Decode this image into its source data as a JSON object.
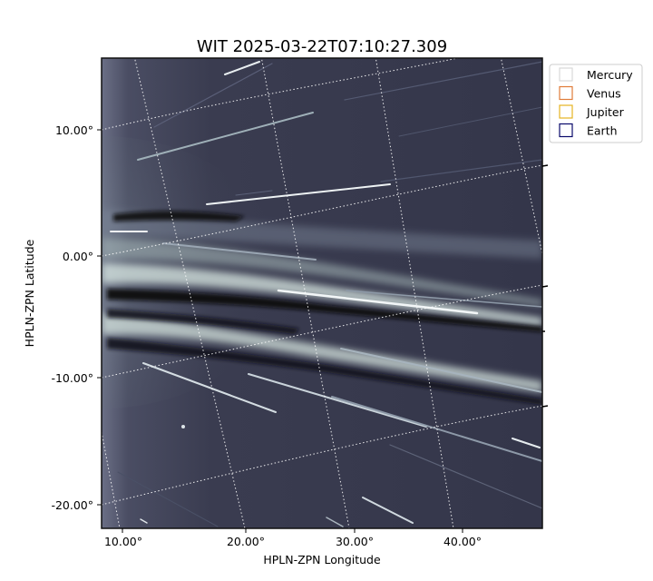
{
  "chart_data": {
    "type": "heatmap",
    "title": "WIT 2025-03-22T07:10:27.309",
    "xlabel": "HPLN-ZPN Longitude",
    "ylabel": "HPLN-ZPN Latitude",
    "x_ticks": [
      "10.00°",
      "20.00°",
      "30.00°",
      "40.00°"
    ],
    "y_ticks": [
      "10.00°",
      "0.00°",
      "-10.00°",
      "-20.00°"
    ],
    "colormap": "bone",
    "grid": true,
    "legend": {
      "placement": "upper-right-outside",
      "entries": [
        {
          "name": "Mercury",
          "color": "#d9d9d9"
        },
        {
          "name": "Venus",
          "color": "#e07b39"
        },
        {
          "name": "Jupiter",
          "color": "#e6b422"
        },
        {
          "name": "Earth",
          "color": "#0b0b6b"
        }
      ]
    },
    "features": [
      "bright streamer belt near 0° to -8° latitude on the left edge",
      "multiple diagonal star trails",
      "dark horizontal bands at about 2.5° and -3° latitude"
    ]
  }
}
